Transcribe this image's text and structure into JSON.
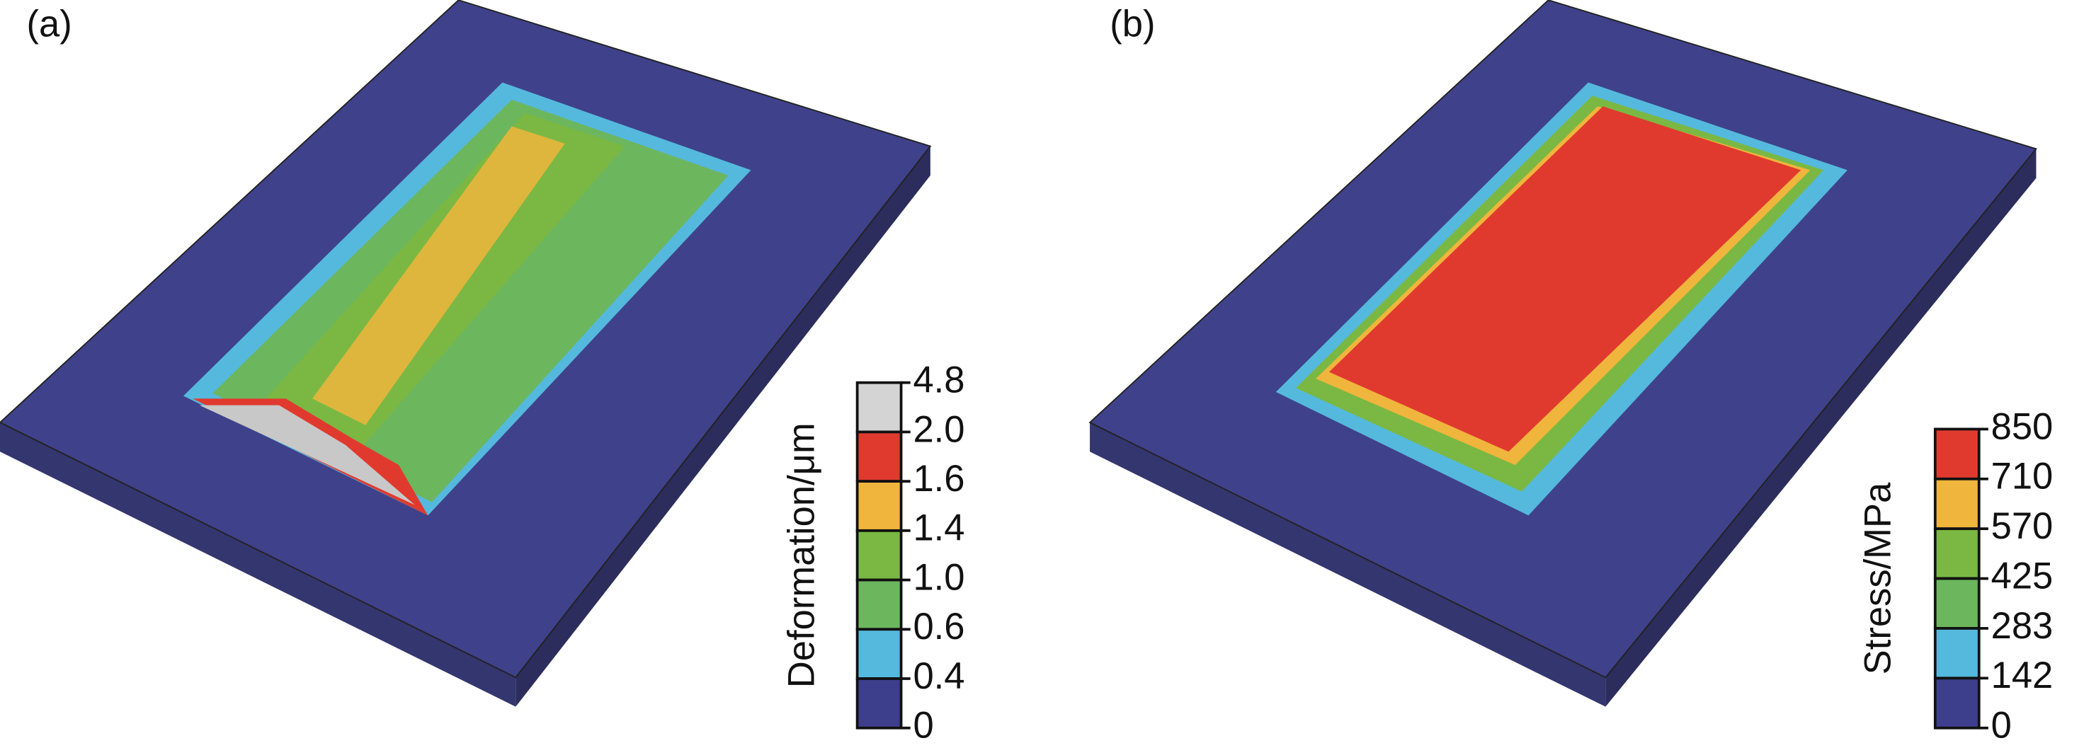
{
  "panels": [
    {
      "label": "(a)",
      "colorbar": {
        "title": "Deformation/μm",
        "ticks": [
          "4.8",
          "2.0",
          "1.6",
          "1.4",
          "1.0",
          "0.6",
          "0.4",
          "0"
        ],
        "colors": [
          "#d4d4d4",
          "#e03a2f",
          "#f0b53c",
          "#7ab843",
          "#6cb65e",
          "#55b9dd",
          "#3d3f8c"
        ]
      }
    },
    {
      "label": "(b)",
      "colorbar": {
        "title": "Stress/MPa",
        "ticks": [
          "850",
          "710",
          "570",
          "425",
          "283",
          "142",
          "0"
        ],
        "colors": [
          "#e03a2f",
          "#f0b53c",
          "#7ab843",
          "#6cb65e",
          "#55b9dd",
          "#3d3f8c"
        ]
      }
    }
  ]
}
